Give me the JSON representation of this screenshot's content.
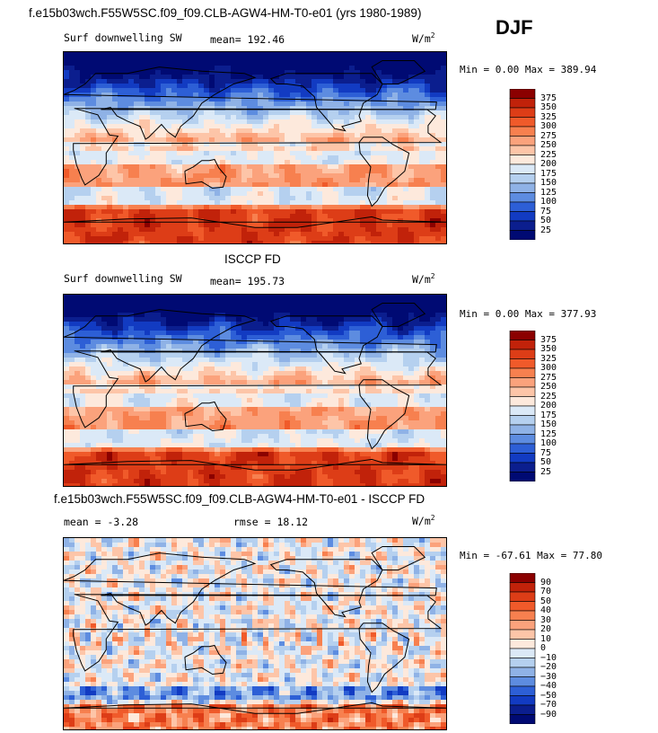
{
  "header": {
    "title": "f.e15b03wch.F55W5SC.f09_f09.CLB-AGW4-HM-T0-e01 (yrs 1980-1989)",
    "season": "DJF"
  },
  "chart_data": [
    {
      "type": "heatmap",
      "panel": "model",
      "title": "f.e15b03wch.F55W5SC.f09_f09.CLB-AGW4-HM-T0-e01 (yrs 1980-1989)",
      "field_label": "Surf downwelling SW",
      "mean_text": "mean= 192.46",
      "units_base": "W/m",
      "units_exp": "2",
      "min_text": "Min =   0.00 Max = 389.94",
      "min": 0.0,
      "max": 389.94,
      "levels": [
        "375",
        "350",
        "325",
        "300",
        "275",
        "250",
        "225",
        "200",
        "175",
        "150",
        "125",
        "100",
        "75",
        "50",
        "25"
      ],
      "colors": [
        "#8b0000",
        "#c1220a",
        "#dd3d17",
        "#f05a2a",
        "#f7804f",
        "#fba27c",
        "#fdc5a8",
        "#fde9dc",
        "#dbe9f7",
        "#b5d0ef",
        "#8fb2e6",
        "#5d8ce0",
        "#2d5fd6",
        "#123bc2",
        "#0b1e8e",
        "#000a73"
      ]
    },
    {
      "type": "heatmap",
      "panel": "obs",
      "title": "ISCCP FD",
      "field_label": "Surf downwelling SW",
      "mean_text": "mean= 195.73",
      "units_base": "W/m",
      "units_exp": "2",
      "min_text": "Min =   0.00 Max = 377.93",
      "min": 0.0,
      "max": 377.93,
      "levels": [
        "375",
        "350",
        "325",
        "300",
        "275",
        "250",
        "225",
        "200",
        "175",
        "150",
        "125",
        "100",
        "75",
        "50",
        "25"
      ],
      "colors": [
        "#8b0000",
        "#c1220a",
        "#dd3d17",
        "#f05a2a",
        "#f7804f",
        "#fba27c",
        "#fdc5a8",
        "#fde9dc",
        "#dbe9f7",
        "#b5d0ef",
        "#8fb2e6",
        "#5d8ce0",
        "#2d5fd6",
        "#123bc2",
        "#0b1e8e",
        "#000a73"
      ]
    },
    {
      "type": "heatmap",
      "panel": "diff",
      "title": "f.e15b03wch.F55W5SC.f09_f09.CLB-AGW4-HM-T0-e01 - ISCCP FD",
      "mean_text": "mean =   -3.28",
      "rmse_text": "rmse =   18.12",
      "units_base": "W/m",
      "units_exp": "2",
      "min_text": "Min = -67.61 Max =  77.80",
      "min": -67.61,
      "max": 77.8,
      "levels": [
        "90",
        "70",
        "50",
        "40",
        "30",
        "20",
        "10",
        "0",
        "−10",
        "−20",
        "−30",
        "−40",
        "−50",
        "−70",
        "−90"
      ],
      "colors": [
        "#8b0000",
        "#c1220a",
        "#dd3d17",
        "#f05a2a",
        "#f7804f",
        "#fba27c",
        "#fdc5a8",
        "#fde9dc",
        "#dbe9f7",
        "#b5d0ef",
        "#8fb2e6",
        "#5d8ce0",
        "#2d5fd6",
        "#123bc2",
        "#0b1e8e",
        "#000a73"
      ]
    }
  ]
}
